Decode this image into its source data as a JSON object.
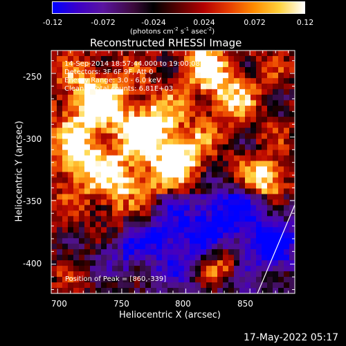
{
  "colorbar": {
    "ticks": [
      "-0.12",
      "-0.072",
      "-0.024",
      "0.024",
      "0.072",
      "0.12"
    ],
    "units_prefix": "(photons cm",
    "units_sup1": "-2",
    "units_mid": " s",
    "units_sup2": "-1",
    "units_mid2": " asec",
    "units_sup3": "-2",
    "units_suffix": ")"
  },
  "plot": {
    "title": "Reconstructed RHESSI Image",
    "annotations": [
      "14-Sep-2014 18:57:44.000 to 19:00:08.000",
      "Detectors: 3F 6F 9F, Att 0",
      "Energy Range: 3.0 - 6.0 keV",
      "Clean    Total counts: 6.81E+03"
    ],
    "peak_label": "Position of Peak = [860,-339]",
    "timestamp": "17-May-2022 05:17"
  },
  "chart_data": {
    "type": "heatmap",
    "title": "Reconstructed RHESSI Image",
    "xlabel": "Heliocentric X (arcsec)",
    "ylabel": "Heliocentric Y (arcsec)",
    "xlim": [
      695,
      885
    ],
    "ylim": [
      -423,
      -232
    ],
    "xticks": [
      "700",
      "750",
      "800",
      "850"
    ],
    "yticks": [
      "-250",
      "-300",
      "-350",
      "-400"
    ],
    "color_range": [
      -0.12,
      0.12
    ],
    "peak": [
      860,
      -339
    ]
  }
}
